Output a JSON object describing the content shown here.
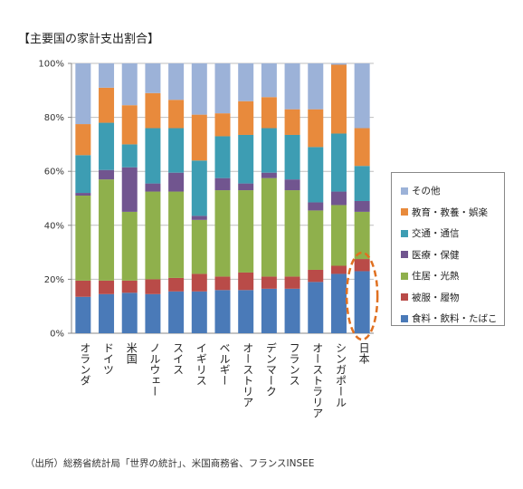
{
  "title": "【主要国の家計支出割合】",
  "source": "（出所）総務省統計局「世界の統計」、米国商務省、フランスINSEE",
  "chart_data": {
    "type": "bar",
    "stacked": true,
    "percent": true,
    "categories": [
      "オランダ",
      "ドイツ",
      "米国",
      "ノルウェー",
      "スイス",
      "イギリス",
      "ベルギー",
      "オーストリア",
      "デンマーク",
      "フランス",
      "オーストラリア",
      "シンガポール",
      "日本"
    ],
    "ylim": [
      0,
      100
    ],
    "yticks": [
      "0%",
      "20%",
      "40%",
      "60%",
      "80%",
      "100%"
    ],
    "series": [
      {
        "name": "食料・飲料・たばこ",
        "color": "#4a7ab8",
        "values": [
          13.5,
          14.5,
          15,
          14.5,
          15.5,
          15.5,
          16,
          16,
          16.5,
          16.5,
          19,
          22,
          23
        ]
      },
      {
        "name": "被服・履物",
        "color": "#b94b48",
        "values": [
          6,
          5,
          4.5,
          5.5,
          5,
          6.5,
          5,
          6.5,
          4.5,
          4.5,
          4.5,
          3,
          4.5
        ]
      },
      {
        "name": "住居・光熱",
        "color": "#8fb04c",
        "values": [
          31.5,
          37.5,
          25.5,
          32.5,
          32,
          20,
          32,
          30.5,
          36.5,
          32,
          22,
          22.5,
          17.5
        ]
      },
      {
        "name": "医療・保健",
        "color": "#71558f",
        "values": [
          1,
          3.5,
          16.5,
          3,
          7,
          1.5,
          4.5,
          2.5,
          2,
          4,
          3,
          5,
          4
        ]
      },
      {
        "name": "交通・通信",
        "color": "#3d9db3",
        "values": [
          14,
          17.5,
          8.5,
          20.5,
          16.5,
          20.5,
          15.5,
          18,
          16.5,
          16.5,
          20.5,
          21.5,
          13
        ]
      },
      {
        "name": "教育・教養・娯楽",
        "color": "#e88a3c",
        "values": [
          11.5,
          13,
          14.5,
          13,
          10.5,
          17,
          8.5,
          12.5,
          11.5,
          9.5,
          14,
          25.5,
          14
        ]
      },
      {
        "name": "その他",
        "color": "#9cb2d8",
        "values": [
          22.5,
          9,
          15.5,
          11,
          13.5,
          19,
          18.5,
          14,
          12.5,
          17,
          17,
          0.5,
          24
        ]
      }
    ],
    "legend_position": "right",
    "legend_order": [
      "その他",
      "教育・教養・娯楽",
      "交通・通信",
      "医療・保健",
      "住居・光熱",
      "被服・履物",
      "食料・飲料・たばこ"
    ],
    "highlight": {
      "category": "日本",
      "series": "食料・飲料・たばこ",
      "marker": "orange dashed ellipse",
      "color": "#e07020"
    }
  }
}
